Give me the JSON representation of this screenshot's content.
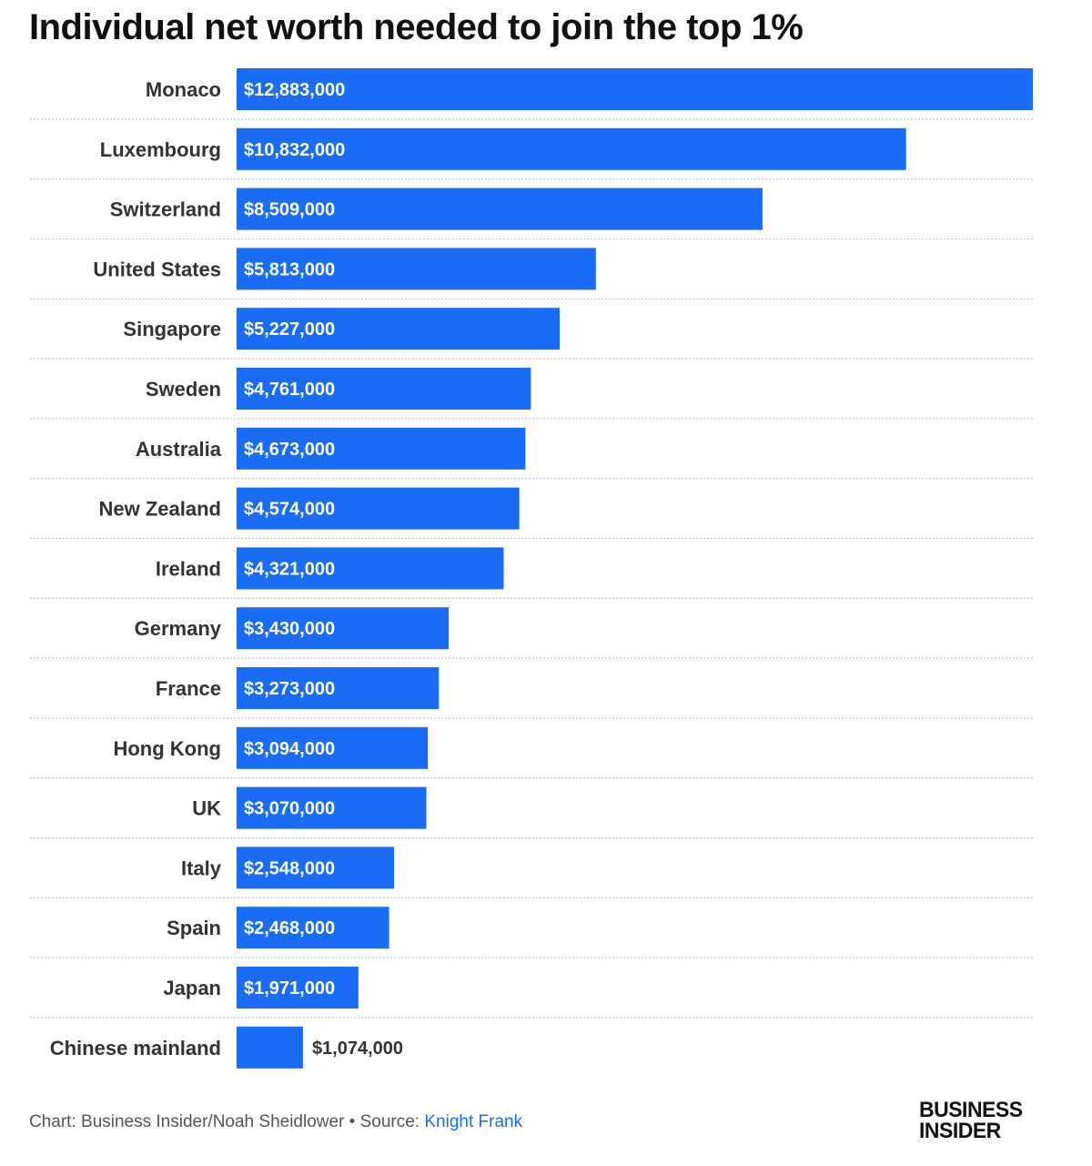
{
  "chart_data": {
    "type": "bar",
    "orientation": "horizontal",
    "title": "Individual net worth needed to join the top 1%",
    "categories": [
      "Monaco",
      "Luxembourg",
      "Switzerland",
      "United States",
      "Singapore",
      "Sweden",
      "Australia",
      "New Zealand",
      "Ireland",
      "Germany",
      "France",
      "Hong Kong",
      "UK",
      "Italy",
      "Spain",
      "Japan",
      "Chinese mainland"
    ],
    "values": [
      12883000,
      10832000,
      8509000,
      5813000,
      5227000,
      4761000,
      4673000,
      4574000,
      4321000,
      3430000,
      3273000,
      3094000,
      3070000,
      2548000,
      2468000,
      1971000,
      1074000
    ],
    "value_labels": [
      "$12,883,000",
      "$10,832,000",
      "$8,509,000",
      "$5,813,000",
      "$5,227,000",
      "$4,761,000",
      "$4,673,000",
      "$4,574,000",
      "$4,321,000",
      "$3,430,000",
      "$3,273,000",
      "$3,094,000",
      "$3,070,000",
      "$2,548,000",
      "$2,468,000",
      "$1,971,000",
      "$1,074,000"
    ],
    "xlabel": "",
    "ylabel": "",
    "xlim": [
      0,
      12883000
    ],
    "grid": false,
    "bar_color": "#1a6cf5"
  },
  "footer": {
    "chart_credit": "Chart: Business Insider/Noah Sheidlower • Source: ",
    "source_name": "Knight Frank",
    "logo_line1": "BUSINESS",
    "logo_line2": "INSIDER"
  },
  "colors": {
    "bar": "#1a6cf5",
    "link": "#1a6cf5",
    "separator": "#bbbbbb"
  }
}
